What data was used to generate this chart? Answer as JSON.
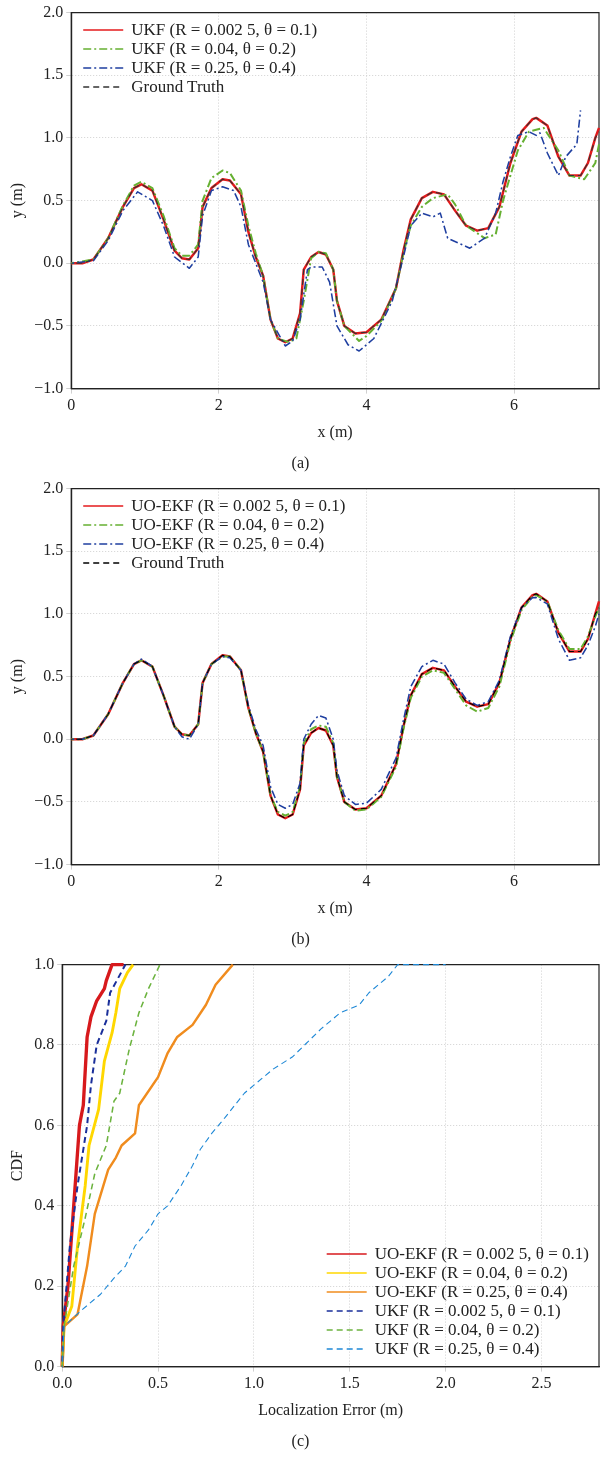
{
  "chart_data": [
    {
      "type": "line",
      "xlabel": "x (m)",
      "ylabel": "y (m)",
      "annotations": [
        "(a)"
      ],
      "xlim": [
        0,
        7.15
      ],
      "xticks": [
        0,
        2,
        4,
        6
      ],
      "ylim": [
        -1,
        2
      ],
      "yticks": [
        {
          "value": -1,
          "label": "−1.0"
        },
        {
          "value": -0.5,
          "label": "−0.5"
        },
        {
          "value": 0,
          "label": "0.0"
        },
        {
          "value": 0.5,
          "label": "0.5"
        },
        {
          "value": 1,
          "label": "1.0"
        },
        {
          "value": 1.5,
          "label": "1.5"
        },
        {
          "value": 2,
          "label": "2.0"
        }
      ],
      "grid": true,
      "legend": "top left",
      "series": [
        {
          "name": "UKF (R = 0.002 5, θ = 0.1)",
          "color": "#e41a1c",
          "line_style": "solid",
          "x": [
            0,
            0.15,
            0.3,
            0.5,
            0.7,
            0.85,
            0.95,
            1.1,
            1.25,
            1.4,
            1.5,
            1.6,
            1.72,
            1.78,
            1.9,
            2.05,
            2.15,
            2.3,
            2.4,
            2.5,
            2.6,
            2.7,
            2.8,
            2.9,
            3.0,
            3.1,
            3.15,
            3.25,
            3.35,
            3.45,
            3.55,
            3.6,
            3.7,
            3.85,
            4.0,
            4.2,
            4.4,
            4.5,
            4.6,
            4.75,
            4.9,
            5.05,
            5.2,
            5.35,
            5.5,
            5.65,
            5.8,
            5.95,
            6.1,
            6.25,
            6.3,
            6.45,
            6.6,
            6.75,
            6.9,
            7.0,
            7.1,
            7.15
          ],
          "values": [
            0,
            0,
            0.03,
            0.2,
            0.45,
            0.6,
            0.63,
            0.58,
            0.35,
            0.1,
            0.04,
            0.03,
            0.12,
            0.45,
            0.6,
            0.67,
            0.66,
            0.55,
            0.25,
            0.05,
            -0.1,
            -0.45,
            -0.6,
            -0.63,
            -0.6,
            -0.4,
            -0.05,
            0.05,
            0.09,
            0.07,
            -0.05,
            -0.3,
            -0.5,
            -0.56,
            -0.55,
            -0.45,
            -0.2,
            0.1,
            0.35,
            0.52,
            0.57,
            0.55,
            0.42,
            0.3,
            0.26,
            0.28,
            0.45,
            0.8,
            1.05,
            1.15,
            1.16,
            1.1,
            0.85,
            0.7,
            0.7,
            0.8,
            1.0,
            1.08
          ]
        },
        {
          "name": "UKF (R = 0.04, θ = 0.2)",
          "color": "#66b032",
          "line_style": "dashdot",
          "x": [
            0,
            0.3,
            0.5,
            0.7,
            0.85,
            0.95,
            1.1,
            1.25,
            1.4,
            1.5,
            1.6,
            1.72,
            1.78,
            1.9,
            2.05,
            2.15,
            2.3,
            2.4,
            2.5,
            2.6,
            2.7,
            2.8,
            2.95,
            3.05,
            3.15,
            3.25,
            3.35,
            3.45,
            3.55,
            3.6,
            3.7,
            3.9,
            4.0,
            4.2,
            4.4,
            4.5,
            4.6,
            4.75,
            4.9,
            5.1,
            5.2,
            5.35,
            5.6,
            5.75,
            5.85,
            6.05,
            6.2,
            6.4,
            6.6,
            6.75,
            6.95,
            7.1,
            7.15
          ],
          "values": [
            0,
            0.03,
            0.2,
            0.46,
            0.62,
            0.65,
            0.6,
            0.38,
            0.12,
            0.06,
            0.06,
            0.15,
            0.5,
            0.68,
            0.74,
            0.72,
            0.58,
            0.3,
            0.08,
            -0.1,
            -0.45,
            -0.6,
            -0.63,
            -0.6,
            -0.3,
            0.04,
            0.09,
            0.08,
            -0.05,
            -0.3,
            -0.5,
            -0.62,
            -0.58,
            -0.46,
            -0.2,
            0.08,
            0.3,
            0.45,
            0.52,
            0.55,
            0.47,
            0.3,
            0.2,
            0.23,
            0.5,
            0.9,
            1.05,
            1.08,
            0.9,
            0.7,
            0.67,
            0.8,
            0.95
          ]
        },
        {
          "name": "UKF (R = 0.25, θ = 0.4)",
          "color": "#1f3fa0",
          "line_style": "dashdot",
          "x": [
            0,
            0.3,
            0.5,
            0.7,
            0.9,
            1.1,
            1.25,
            1.4,
            1.6,
            1.72,
            1.78,
            1.9,
            2.05,
            2.2,
            2.3,
            2.4,
            2.5,
            2.6,
            2.7,
            2.9,
            3.0,
            3.1,
            3.2,
            3.25,
            3.4,
            3.5,
            3.6,
            3.75,
            3.9,
            4.1,
            4.35,
            4.5,
            4.6,
            4.75,
            4.9,
            5.0,
            5.1,
            5.4,
            5.6,
            5.75,
            5.85,
            5.95,
            6.05,
            6.2,
            6.3,
            6.35,
            6.45,
            6.6,
            6.7,
            6.85,
            6.9
          ],
          "values": [
            0,
            0.02,
            0.18,
            0.42,
            0.57,
            0.5,
            0.3,
            0.05,
            -0.04,
            0.05,
            0.38,
            0.58,
            0.61,
            0.58,
            0.45,
            0.15,
            0,
            -0.15,
            -0.45,
            -0.66,
            -0.62,
            -0.45,
            -0.05,
            -0.03,
            -0.03,
            -0.15,
            -0.5,
            -0.65,
            -0.7,
            -0.6,
            -0.3,
            0.05,
            0.3,
            0.4,
            0.37,
            0.4,
            0.2,
            0.12,
            0.2,
            0.4,
            0.65,
            0.85,
            1.02,
            1.05,
            1.02,
            1.04,
            0.88,
            0.7,
            0.85,
            0.95,
            1.22
          ]
        },
        {
          "name": "Ground Truth",
          "color": "#333333",
          "line_style": "dashed",
          "x": [
            0,
            0.15,
            0.3,
            0.5,
            0.7,
            0.85,
            0.95,
            1.1,
            1.25,
            1.4,
            1.5,
            1.6,
            1.72,
            1.78,
            1.9,
            2.05,
            2.15,
            2.3,
            2.4,
            2.5,
            2.6,
            2.7,
            2.8,
            2.9,
            3.0,
            3.1,
            3.15,
            3.25,
            3.35,
            3.45,
            3.55,
            3.6,
            3.7,
            3.85,
            4.0,
            4.2,
            4.4,
            4.5,
            4.6,
            4.75,
            4.9,
            5.05,
            5.2,
            5.35,
            5.5,
            5.65,
            5.8,
            5.95,
            6.1,
            6.25,
            6.3,
            6.45,
            6.6,
            6.75,
            6.9,
            7.0,
            7.1,
            7.15
          ],
          "values": [
            0,
            0,
            0.03,
            0.2,
            0.45,
            0.6,
            0.63,
            0.58,
            0.35,
            0.1,
            0.04,
            0.03,
            0.12,
            0.45,
            0.6,
            0.67,
            0.66,
            0.55,
            0.25,
            0.05,
            -0.1,
            -0.45,
            -0.6,
            -0.63,
            -0.6,
            -0.4,
            -0.05,
            0.05,
            0.09,
            0.07,
            -0.05,
            -0.3,
            -0.5,
            -0.56,
            -0.55,
            -0.45,
            -0.2,
            0.1,
            0.35,
            0.52,
            0.57,
            0.55,
            0.42,
            0.3,
            0.26,
            0.28,
            0.45,
            0.8,
            1.05,
            1.15,
            1.16,
            1.1,
            0.85,
            0.7,
            0.7,
            0.8,
            1.0,
            1.05
          ]
        }
      ]
    },
    {
      "type": "line",
      "xlabel": "x (m)",
      "ylabel": "y (m)",
      "annotations": [
        "(b)"
      ],
      "xlim": [
        0,
        7.15
      ],
      "xticks": [
        0,
        2,
        4,
        6
      ],
      "ylim": [
        -1,
        2
      ],
      "yticks": [
        {
          "value": -1,
          "label": "−1.0"
        },
        {
          "value": -0.5,
          "label": "−0.5"
        },
        {
          "value": 0,
          "label": "0.0"
        },
        {
          "value": 0.5,
          "label": "0.5"
        },
        {
          "value": 1,
          "label": "1.0"
        },
        {
          "value": 1.5,
          "label": "1.5"
        },
        {
          "value": 2,
          "label": "2.0"
        }
      ],
      "grid": true,
      "legend": "top left",
      "series": [
        {
          "name": "UO-EKF (R = 0.002 5, θ = 0.1)",
          "color": "#e41a1c",
          "line_style": "solid",
          "x": [
            0,
            0.15,
            0.3,
            0.5,
            0.7,
            0.85,
            0.95,
            1.1,
            1.25,
            1.4,
            1.5,
            1.6,
            1.72,
            1.78,
            1.9,
            2.05,
            2.15,
            2.3,
            2.4,
            2.5,
            2.6,
            2.7,
            2.8,
            2.9,
            3.0,
            3.1,
            3.15,
            3.25,
            3.35,
            3.45,
            3.55,
            3.6,
            3.7,
            3.85,
            4.0,
            4.2,
            4.4,
            4.5,
            4.6,
            4.75,
            4.9,
            5.05,
            5.2,
            5.35,
            5.5,
            5.65,
            5.8,
            5.95,
            6.1,
            6.25,
            6.3,
            6.45,
            6.6,
            6.75,
            6.9,
            7.0,
            7.1,
            7.15
          ],
          "values": [
            0,
            0,
            0.03,
            0.2,
            0.45,
            0.6,
            0.63,
            0.58,
            0.35,
            0.1,
            0.04,
            0.03,
            0.12,
            0.45,
            0.6,
            0.67,
            0.66,
            0.55,
            0.25,
            0.05,
            -0.1,
            -0.45,
            -0.6,
            -0.63,
            -0.6,
            -0.4,
            -0.05,
            0.05,
            0.09,
            0.07,
            -0.05,
            -0.3,
            -0.5,
            -0.56,
            -0.55,
            -0.45,
            -0.2,
            0.1,
            0.35,
            0.52,
            0.57,
            0.55,
            0.42,
            0.3,
            0.26,
            0.28,
            0.45,
            0.8,
            1.05,
            1.15,
            1.16,
            1.1,
            0.85,
            0.7,
            0.7,
            0.8,
            1.0,
            1.1
          ]
        },
        {
          "name": "UO-EKF (R = 0.04, θ = 0.2)",
          "color": "#66b032",
          "line_style": "dashdot",
          "x": [
            0,
            0.15,
            0.3,
            0.5,
            0.7,
            0.85,
            0.95,
            1.1,
            1.25,
            1.4,
            1.5,
            1.6,
            1.72,
            1.78,
            1.9,
            2.05,
            2.15,
            2.3,
            2.4,
            2.5,
            2.6,
            2.7,
            2.8,
            2.9,
            3.0,
            3.1,
            3.15,
            3.25,
            3.35,
            3.45,
            3.55,
            3.6,
            3.7,
            3.85,
            4.0,
            4.2,
            4.4,
            4.5,
            4.6,
            4.75,
            4.9,
            5.05,
            5.2,
            5.35,
            5.5,
            5.65,
            5.8,
            5.95,
            6.1,
            6.25,
            6.3,
            6.45,
            6.6,
            6.75,
            6.9,
            7.0,
            7.1,
            7.15
          ],
          "values": [
            0,
            0,
            0.03,
            0.2,
            0.45,
            0.6,
            0.63,
            0.58,
            0.35,
            0.1,
            0.04,
            0.03,
            0.12,
            0.45,
            0.6,
            0.66,
            0.66,
            0.55,
            0.25,
            0.05,
            -0.1,
            -0.45,
            -0.58,
            -0.61,
            -0.58,
            -0.38,
            -0.03,
            0.08,
            0.11,
            0.1,
            -0.03,
            -0.3,
            -0.5,
            -0.57,
            -0.56,
            -0.46,
            -0.22,
            0.08,
            0.33,
            0.5,
            0.55,
            0.53,
            0.4,
            0.27,
            0.22,
            0.25,
            0.42,
            0.78,
            1.03,
            1.14,
            1.15,
            1.1,
            0.87,
            0.72,
            0.72,
            0.82,
            0.98,
            1.05
          ]
        },
        {
          "name": "UO-EKF (R = 0.25, θ = 0.4)",
          "color": "#1f3fa0",
          "line_style": "dashdot",
          "x": [
            0,
            0.15,
            0.3,
            0.5,
            0.7,
            0.85,
            0.95,
            1.1,
            1.25,
            1.4,
            1.5,
            1.6,
            1.72,
            1.78,
            1.9,
            2.05,
            2.15,
            2.3,
            2.4,
            2.5,
            2.6,
            2.7,
            2.8,
            2.9,
            3.0,
            3.1,
            3.15,
            3.25,
            3.35,
            3.45,
            3.55,
            3.6,
            3.7,
            3.85,
            4.0,
            4.2,
            4.4,
            4.5,
            4.6,
            4.75,
            4.9,
            5.05,
            5.2,
            5.35,
            5.5,
            5.65,
            5.8,
            5.95,
            6.1,
            6.25,
            6.3,
            6.45,
            6.6,
            6.75,
            6.9,
            7.0,
            7.1,
            7.15
          ],
          "values": [
            0,
            0,
            0.03,
            0.2,
            0.45,
            0.6,
            0.64,
            0.58,
            0.35,
            0.1,
            0.02,
            0.0,
            0.12,
            0.45,
            0.6,
            0.66,
            0.65,
            0.55,
            0.27,
            0.08,
            -0.05,
            -0.38,
            -0.52,
            -0.55,
            -0.52,
            -0.35,
            0.0,
            0.12,
            0.19,
            0.17,
            0.0,
            -0.25,
            -0.45,
            -0.52,
            -0.51,
            -0.4,
            -0.15,
            0.15,
            0.42,
            0.58,
            0.63,
            0.6,
            0.45,
            0.32,
            0.27,
            0.3,
            0.47,
            0.82,
            1.05,
            1.13,
            1.13,
            1.08,
            0.8,
            0.63,
            0.65,
            0.75,
            0.9,
            1.0
          ]
        },
        {
          "name": "Ground Truth",
          "color": "#000000",
          "line_style": "dashed",
          "x": [
            0,
            0.15,
            0.3,
            0.5,
            0.7,
            0.85,
            0.95,
            1.1,
            1.25,
            1.4,
            1.5,
            1.6,
            1.72,
            1.78,
            1.9,
            2.05,
            2.15,
            2.3,
            2.4,
            2.5,
            2.6,
            2.7,
            2.8,
            2.9,
            3.0,
            3.1,
            3.15,
            3.25,
            3.35,
            3.45,
            3.55,
            3.6,
            3.7,
            3.85,
            4.0,
            4.2,
            4.4,
            4.5,
            4.6,
            4.75,
            4.9,
            5.05,
            5.2,
            5.35,
            5.5,
            5.65,
            5.8,
            5.95,
            6.1,
            6.25,
            6.3,
            6.45,
            6.6,
            6.75,
            6.9,
            7.0,
            7.1,
            7.15
          ],
          "values": [
            0,
            0,
            0.03,
            0.2,
            0.45,
            0.6,
            0.63,
            0.58,
            0.35,
            0.1,
            0.04,
            0.03,
            0.12,
            0.45,
            0.6,
            0.67,
            0.66,
            0.55,
            0.25,
            0.05,
            -0.1,
            -0.45,
            -0.6,
            -0.63,
            -0.6,
            -0.4,
            -0.05,
            0.05,
            0.09,
            0.07,
            -0.05,
            -0.3,
            -0.5,
            -0.56,
            -0.55,
            -0.45,
            -0.2,
            0.1,
            0.35,
            0.52,
            0.57,
            0.55,
            0.42,
            0.3,
            0.26,
            0.28,
            0.45,
            0.8,
            1.05,
            1.15,
            1.16,
            1.1,
            0.85,
            0.7,
            0.7,
            0.8,
            1.0,
            1.05
          ]
        }
      ]
    },
    {
      "type": "line",
      "xlabel": "Localization Error (m)",
      "ylabel": "CDF",
      "annotations": [
        "(c)"
      ],
      "xlim": [
        0,
        2.8
      ],
      "xticks": [
        {
          "value": 0,
          "label": "0.0"
        },
        {
          "value": 0.5,
          "label": "0.5"
        },
        {
          "value": 1,
          "label": "1.0"
        },
        {
          "value": 1.5,
          "label": "1.5"
        },
        {
          "value": 2,
          "label": "2.0"
        },
        {
          "value": 2.5,
          "label": "2.5"
        }
      ],
      "ylim": [
        0,
        1
      ],
      "yticks": [
        {
          "value": 0,
          "label": "0.0"
        },
        {
          "value": 0.2,
          "label": "0.2"
        },
        {
          "value": 0.4,
          "label": "0.4"
        },
        {
          "value": 0.6,
          "label": "0.6"
        },
        {
          "value": 0.8,
          "label": "0.8"
        },
        {
          "value": 1,
          "label": "1.0"
        }
      ],
      "grid": true,
      "legend": "bottom right",
      "series": [
        {
          "name": "UO-EKF (R = 0.002 5, θ = 0.1)",
          "color": "#d7191c",
          "line_style": "solid",
          "x": [
            0,
            0.005,
            0.03,
            0.06,
            0.09,
            0.11,
            0.13,
            0.15,
            0.18,
            0.22,
            0.23,
            0.26,
            0.32
          ],
          "values": [
            0,
            0.1,
            0.2,
            0.4,
            0.6,
            0.65,
            0.82,
            0.87,
            0.91,
            0.94,
            0.96,
            1.0,
            1.0
          ]
        },
        {
          "name": "UO-EKF (R = 0.04, θ = 0.2)",
          "color": "#ffd700",
          "line_style": "solid",
          "x": [
            0,
            0.01,
            0.05,
            0.08,
            0.12,
            0.14,
            0.19,
            0.22,
            0.26,
            0.28,
            0.3,
            0.34,
            0.37
          ],
          "values": [
            0,
            0.1,
            0.15,
            0.3,
            0.45,
            0.55,
            0.64,
            0.76,
            0.83,
            0.88,
            0.94,
            0.98,
            1.0
          ]
        },
        {
          "name": "UO-EKF (R = 0.25, θ = 0.4)",
          "color": "#f08c1e",
          "line_style": "solid",
          "x": [
            0,
            0.01,
            0.08,
            0.13,
            0.17,
            0.24,
            0.28,
            0.31,
            0.38,
            0.4,
            0.5,
            0.55,
            0.6,
            0.68,
            0.75,
            0.8,
            0.89
          ],
          "values": [
            0,
            0.1,
            0.13,
            0.25,
            0.38,
            0.49,
            0.52,
            0.55,
            0.58,
            0.65,
            0.72,
            0.78,
            0.82,
            0.85,
            0.9,
            0.95,
            1.0
          ]
        },
        {
          "name": "UKF (R = 0.002 5, θ = 0.1)",
          "color": "#1a2f9a",
          "line_style": "dashed",
          "x": [
            0,
            0.005,
            0.04,
            0.08,
            0.13,
            0.15,
            0.18,
            0.23,
            0.25,
            0.33
          ],
          "values": [
            0,
            0.1,
            0.3,
            0.45,
            0.6,
            0.7,
            0.8,
            0.86,
            0.93,
            1.0
          ]
        },
        {
          "name": "UKF (R = 0.04, θ = 0.2)",
          "color": "#6cb33f",
          "line_style": "dashed",
          "x": [
            0,
            0.01,
            0.06,
            0.12,
            0.17,
            0.23,
            0.27,
            0.3,
            0.35,
            0.4,
            0.45,
            0.51
          ],
          "values": [
            0,
            0.1,
            0.25,
            0.37,
            0.48,
            0.55,
            0.66,
            0.68,
            0.79,
            0.88,
            0.94,
            1.0
          ]
        },
        {
          "name": "UKF (R = 0.25, θ = 0.4)",
          "color": "#1e88d6",
          "line_style": "dashed",
          "x": [
            0,
            0.01,
            0.1,
            0.2,
            0.27,
            0.33,
            0.38,
            0.45,
            0.5,
            0.55,
            0.62,
            0.68,
            0.72,
            0.78,
            0.85,
            0.95,
            1.0,
            1.1,
            1.2,
            1.35,
            1.45,
            1.55,
            1.6,
            1.7,
            1.75,
            2.0
          ],
          "values": [
            0,
            0.1,
            0.14,
            0.18,
            0.22,
            0.25,
            0.3,
            0.34,
            0.38,
            0.4,
            0.45,
            0.5,
            0.54,
            0.58,
            0.62,
            0.68,
            0.7,
            0.74,
            0.77,
            0.84,
            0.88,
            0.9,
            0.93,
            0.97,
            1.0,
            1.0
          ]
        }
      ]
    }
  ]
}
